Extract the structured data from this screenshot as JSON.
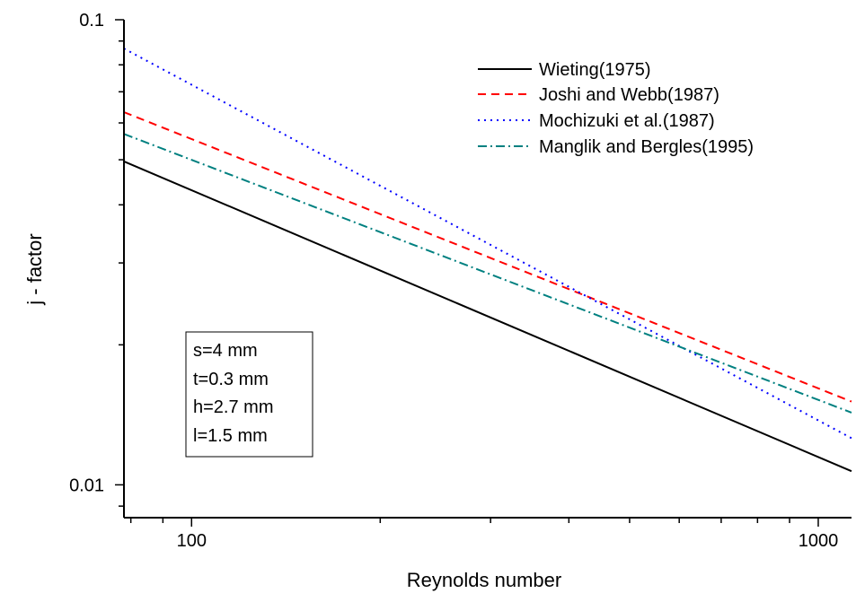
{
  "chart_data": {
    "type": "line",
    "title": "",
    "xlabel": "Reynolds number",
    "ylabel": "j - factor",
    "x_scale": "log",
    "y_scale": "log",
    "xlim": [
      78,
      1130
    ],
    "ylim": [
      0.0085,
      0.1
    ],
    "x_ticks": [
      {
        "value": 100,
        "label": "100"
      },
      {
        "value": 1000,
        "label": "1000"
      }
    ],
    "y_ticks": [
      {
        "value": 0.1,
        "label": "0.1"
      },
      {
        "value": 0.01,
        "label": "0.01"
      }
    ],
    "legend_position": "top-right",
    "series": [
      {
        "name": "Wieting(1975)",
        "color": "#000000",
        "dash": "solid",
        "x": [
          78,
          1130
        ],
        "y": [
          0.0496,
          0.0107
        ]
      },
      {
        "name": "Joshi and Webb(1987)",
        "color": "#ff0000",
        "dash": "dashed",
        "x": [
          78,
          1130
        ],
        "y": [
          0.0633,
          0.0151
        ]
      },
      {
        "name": "Mochizuki et al.(1987)",
        "color": "#0000ff",
        "dash": "dotted",
        "x": [
          78,
          1130
        ],
        "y": [
          0.0867,
          0.0126
        ]
      },
      {
        "name": "Manglik and Bergles(1995)",
        "color": "#008080",
        "dash": "dash-dot",
        "x": [
          78,
          1130
        ],
        "y": [
          0.0568,
          0.0143
        ]
      }
    ],
    "annotations": [
      "s=4 mm",
      "t=0.3 mm",
      "h=2.7 mm",
      "l=1.5 mm"
    ]
  }
}
